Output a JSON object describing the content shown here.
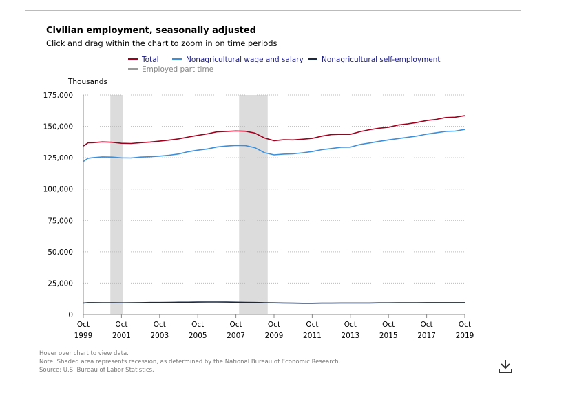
{
  "chart_data": {
    "type": "line",
    "title": "Civilian employment, seasonally adjusted",
    "subtitle": "Click and drag within the chart to zoom in on time periods",
    "y_label": "Thousands",
    "x": [
      "1999-10",
      "2000-01",
      "2000-04",
      "2000-10",
      "2001-04",
      "2001-10",
      "2002-04",
      "2002-10",
      "2003-04",
      "2003-10",
      "2004-04",
      "2004-10",
      "2005-04",
      "2005-10",
      "2006-04",
      "2006-10",
      "2007-04",
      "2007-10",
      "2008-04",
      "2008-10",
      "2009-04",
      "2009-10",
      "2010-04",
      "2010-10",
      "2011-04",
      "2011-10",
      "2012-04",
      "2012-10",
      "2013-04",
      "2013-10",
      "2014-04",
      "2014-10",
      "2015-04",
      "2015-10",
      "2016-04",
      "2016-10",
      "2017-04",
      "2017-10",
      "2018-04",
      "2018-10",
      "2019-04",
      "2019-10"
    ],
    "series": [
      {
        "name": "Total",
        "color": "#a0001e",
        "values": [
          134300,
          136900,
          137000,
          137600,
          137300,
          136500,
          136300,
          137000,
          137500,
          138200,
          139000,
          140000,
          141500,
          142800,
          144000,
          145600,
          146000,
          146300,
          146100,
          144600,
          140700,
          138600,
          139300,
          139200,
          139700,
          140400,
          142200,
          143400,
          143700,
          143600,
          145700,
          147300,
          148500,
          149200,
          151000,
          151900,
          153100,
          154600,
          155500,
          157000,
          157300,
          158500
        ]
      },
      {
        "name": "Nonagricultural wage and salary",
        "color": "#3d8fd9",
        "values": [
          122000,
          124600,
          125000,
          125700,
          125500,
          124900,
          124800,
          125500,
          125800,
          126300,
          127000,
          128000,
          129800,
          131000,
          132000,
          133500,
          134300,
          134800,
          134600,
          133000,
          129000,
          127300,
          127900,
          128100,
          128900,
          129900,
          131400,
          132300,
          133300,
          133400,
          135500,
          136700,
          138000,
          139200,
          140200,
          141200,
          142300,
          143800,
          144900,
          146000,
          146200,
          147500
        ]
      },
      {
        "name": "Nonagricultural self-employment",
        "color": "#1b2a44",
        "values": [
          9100,
          9400,
          9400,
          9300,
          9300,
          9200,
          9300,
          9400,
          9500,
          9500,
          9600,
          9700,
          9700,
          9800,
          9900,
          9900,
          9800,
          9700,
          9600,
          9500,
          9300,
          9200,
          9100,
          9000,
          8900,
          8900,
          9000,
          9000,
          9100,
          9100,
          9100,
          9100,
          9200,
          9200,
          9300,
          9300,
          9300,
          9400,
          9400,
          9400,
          9400,
          9400
        ]
      },
      {
        "name": "Employed part time",
        "color": "#999999",
        "visible": false
      }
    ],
    "recessions": [
      [
        "2001-03",
        "2001-11"
      ],
      [
        "2007-12",
        "2009-06"
      ]
    ],
    "xlim": [
      "1999-10",
      "2019-10"
    ],
    "xticks": [
      {
        "value": "1999-10",
        "label": "Oct 1999"
      },
      {
        "value": "2001-10",
        "label": "Oct 2001"
      },
      {
        "value": "2003-10",
        "label": "Oct 2003"
      },
      {
        "value": "2005-10",
        "label": "Oct 2005"
      },
      {
        "value": "2007-10",
        "label": "Oct 2007"
      },
      {
        "value": "2009-10",
        "label": "Oct 2009"
      },
      {
        "value": "2011-10",
        "label": "Oct 2011"
      },
      {
        "value": "2013-10",
        "label": "Oct 2013"
      },
      {
        "value": "2015-10",
        "label": "Oct 2015"
      },
      {
        "value": "2017-10",
        "label": "Oct 2017"
      },
      {
        "value": "2019-10",
        "label": "Oct 2019"
      }
    ],
    "ylim": [
      0,
      175000
    ],
    "yticks": [
      0,
      {
        "value": 25000,
        "label": "25,000"
      },
      {
        "value": 50000,
        "label": "50,000"
      },
      {
        "value": 75000,
        "label": "75,000"
      },
      {
        "value": 100000,
        "label": "100,000"
      },
      {
        "value": 125000,
        "label": "125,000"
      },
      {
        "value": 150000,
        "label": "150,000"
      },
      {
        "value": 175000,
        "label": "175,000"
      }
    ],
    "grid": true,
    "notes": [
      "Hover over chart to view data.",
      "Note: Shaded area represents recession, as determined by the National Bureau of Economic Research.",
      "Source: U.S. Bureau of Labor Statistics."
    ]
  }
}
